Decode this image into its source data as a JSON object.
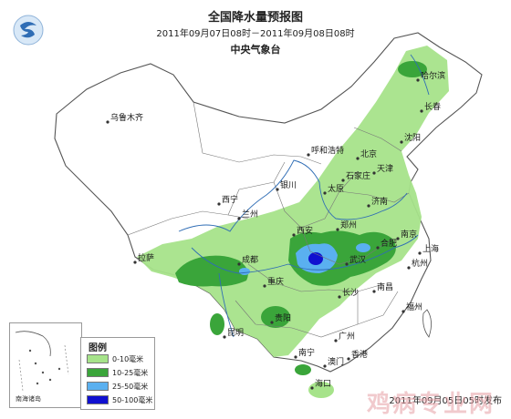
{
  "title": "全国降水量预报图",
  "period": "2011年09月07日08时－2011年09月08日08时",
  "agency": "中央气象台",
  "issued": "2011年09月05日05时发布",
  "watermark": "鸡病专业网",
  "inset_label": "南海诸岛",
  "legend": {
    "title": "图例",
    "items": [
      {
        "label": "0-10毫米",
        "color": "#a6e38a"
      },
      {
        "label": "10-25毫米",
        "color": "#3aa53a"
      },
      {
        "label": "25-50毫米",
        "color": "#5ab0f0"
      },
      {
        "label": "50-100毫米",
        "color": "#1010d0"
      }
    ]
  },
  "cities": [
    {
      "name": "乌鲁木齐"
    },
    {
      "name": "哈尔滨"
    },
    {
      "name": "长春"
    },
    {
      "name": "沈阳"
    },
    {
      "name": "呼和浩特"
    },
    {
      "name": "北京"
    },
    {
      "name": "天津"
    },
    {
      "name": "石家庄"
    },
    {
      "name": "太原"
    },
    {
      "name": "济南"
    },
    {
      "name": "银川"
    },
    {
      "name": "西宁"
    },
    {
      "name": "兰州"
    },
    {
      "name": "郑州"
    },
    {
      "name": "西安"
    },
    {
      "name": "合肥"
    },
    {
      "name": "南京"
    },
    {
      "name": "上海"
    },
    {
      "name": "杭州"
    },
    {
      "name": "武汉"
    },
    {
      "name": "拉萨"
    },
    {
      "name": "成都"
    },
    {
      "name": "重庆"
    },
    {
      "name": "长沙"
    },
    {
      "name": "南昌"
    },
    {
      "name": "福州"
    },
    {
      "name": "贵阳"
    },
    {
      "name": "昆明"
    },
    {
      "name": "广州"
    },
    {
      "name": "南宁"
    },
    {
      "name": "香港"
    },
    {
      "name": "澳门"
    },
    {
      "name": "海口"
    }
  ]
}
